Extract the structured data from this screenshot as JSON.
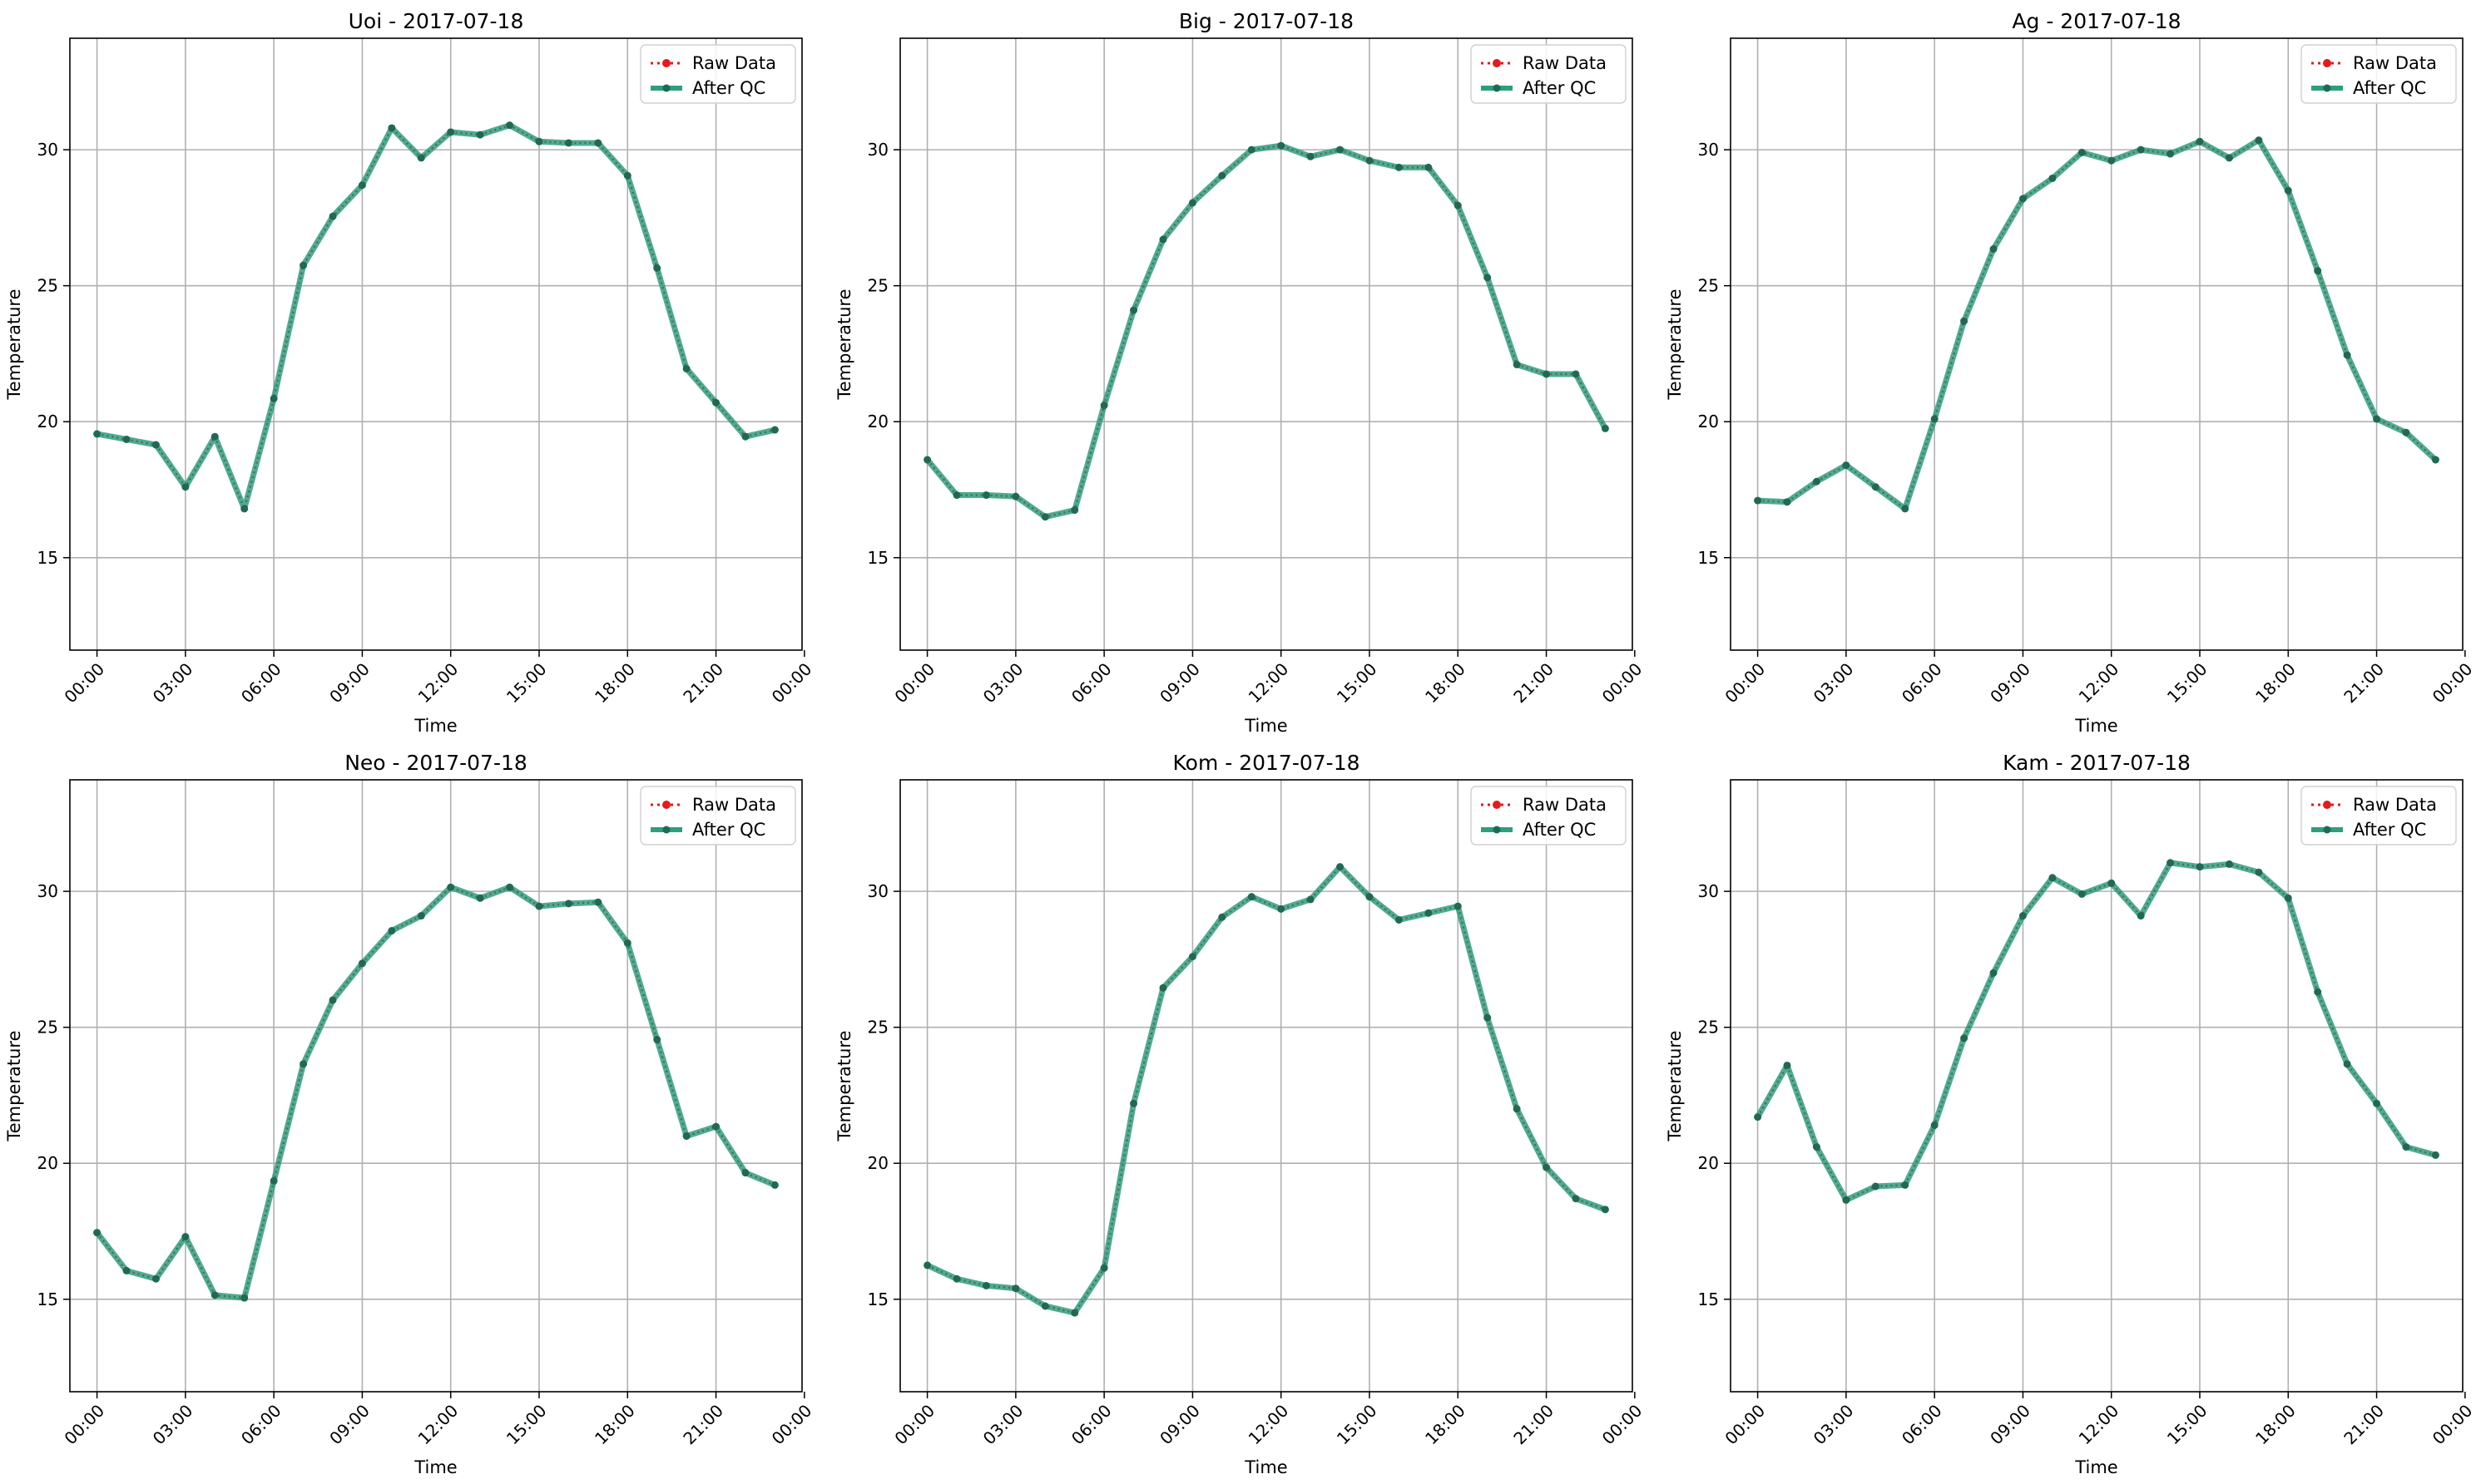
{
  "chart_data": [
    {
      "type": "line",
      "title": "Uoi - 2017-07-18",
      "xlabel": "Time",
      "ylabel": "Temperature",
      "ylim": [
        11.6,
        34.1
      ],
      "xlim": [
        -0.92,
        23.92
      ],
      "x": [
        0,
        1,
        2,
        3,
        4,
        5,
        6,
        7,
        8,
        9,
        10,
        11,
        12,
        13,
        14,
        15,
        16,
        17,
        18,
        19,
        20,
        21,
        22,
        23
      ],
      "xticks": [
        "00:00",
        "03:00",
        "06:00",
        "09:00",
        "12:00",
        "15:00",
        "18:00",
        "21:00",
        "00:00"
      ],
      "yticks": [
        15,
        20,
        25,
        30
      ],
      "grid": true,
      "legend": "top-right",
      "series": [
        {
          "name": "Raw Data",
          "values": [
            19.55,
            19.35,
            19.15,
            17.6,
            19.45,
            16.8,
            20.85,
            25.75,
            27.55,
            28.7,
            30.8,
            29.7,
            30.65,
            30.55,
            30.9,
            30.3,
            30.25,
            30.25,
            29.05,
            25.65,
            21.95,
            20.7,
            19.45,
            19.7
          ]
        },
        {
          "name": "After QC",
          "values": [
            19.55,
            19.35,
            19.15,
            17.6,
            19.45,
            16.8,
            20.85,
            25.75,
            27.55,
            28.7,
            30.8,
            29.7,
            30.65,
            30.55,
            30.9,
            30.3,
            30.25,
            30.25,
            29.05,
            25.65,
            21.95,
            20.7,
            19.45,
            19.7
          ]
        }
      ]
    },
    {
      "type": "line",
      "title": "Big - 2017-07-18",
      "xlabel": "Time",
      "ylabel": "Temperature",
      "ylim": [
        11.6,
        34.1
      ],
      "xlim": [
        -0.92,
        23.92
      ],
      "x": [
        0,
        1,
        2,
        3,
        4,
        5,
        6,
        7,
        8,
        9,
        10,
        11,
        12,
        13,
        14,
        15,
        16,
        17,
        18,
        19,
        20,
        21,
        22,
        23
      ],
      "xticks": [
        "00:00",
        "03:00",
        "06:00",
        "09:00",
        "12:00",
        "15:00",
        "18:00",
        "21:00",
        "00:00"
      ],
      "yticks": [
        15,
        20,
        25,
        30
      ],
      "grid": true,
      "legend": "top-right",
      "series": [
        {
          "name": "Raw Data",
          "values": [
            18.6,
            17.3,
            17.3,
            17.25,
            16.5,
            16.75,
            20.6,
            24.1,
            26.7,
            28.05,
            29.05,
            30.0,
            30.15,
            29.75,
            30.0,
            29.6,
            29.35,
            29.35,
            27.95,
            25.3,
            22.1,
            21.75,
            21.75,
            19.75
          ]
        },
        {
          "name": "After QC",
          "values": [
            18.6,
            17.3,
            17.3,
            17.25,
            16.5,
            16.75,
            20.6,
            24.1,
            26.7,
            28.05,
            29.05,
            30.0,
            30.15,
            29.75,
            30.0,
            29.6,
            29.35,
            29.35,
            27.95,
            25.3,
            22.1,
            21.75,
            21.75,
            19.75
          ]
        }
      ]
    },
    {
      "type": "line",
      "title": "Ag - 2017-07-18",
      "xlabel": "Time",
      "ylabel": "Temperature",
      "ylim": [
        11.6,
        34.1
      ],
      "xlim": [
        -0.92,
        23.92
      ],
      "x": [
        0,
        1,
        2,
        3,
        4,
        5,
        6,
        7,
        8,
        9,
        10,
        11,
        12,
        13,
        14,
        15,
        16,
        17,
        18,
        19,
        20,
        21,
        22,
        23
      ],
      "xticks": [
        "00:00",
        "03:00",
        "06:00",
        "09:00",
        "12:00",
        "15:00",
        "18:00",
        "21:00",
        "00:00"
      ],
      "yticks": [
        15,
        20,
        25,
        30
      ],
      "grid": true,
      "legend": "top-right",
      "series": [
        {
          "name": "Raw Data",
          "values": [
            17.1,
            17.05,
            17.8,
            18.4,
            17.6,
            16.8,
            20.1,
            23.7,
            26.35,
            28.2,
            28.95,
            29.9,
            29.6,
            30.0,
            29.85,
            30.3,
            29.7,
            30.35,
            28.5,
            25.55,
            22.45,
            20.1,
            19.6,
            18.6
          ]
        },
        {
          "name": "After QC",
          "values": [
            17.1,
            17.05,
            17.8,
            18.4,
            17.6,
            16.8,
            20.1,
            23.7,
            26.35,
            28.2,
            28.95,
            29.9,
            29.6,
            30.0,
            29.85,
            30.3,
            29.7,
            30.35,
            28.5,
            25.55,
            22.45,
            20.1,
            19.6,
            18.6
          ]
        }
      ]
    },
    {
      "type": "line",
      "title": "Neo - 2017-07-18",
      "xlabel": "Time",
      "ylabel": "Temperature",
      "ylim": [
        11.6,
        34.1
      ],
      "xlim": [
        -0.92,
        23.92
      ],
      "x": [
        0,
        1,
        2,
        3,
        4,
        5,
        6,
        7,
        8,
        9,
        10,
        11,
        12,
        13,
        14,
        15,
        16,
        17,
        18,
        19,
        20,
        21,
        22,
        23
      ],
      "xticks": [
        "00:00",
        "03:00",
        "06:00",
        "09:00",
        "12:00",
        "15:00",
        "18:00",
        "21:00",
        "00:00"
      ],
      "yticks": [
        15,
        20,
        25,
        30
      ],
      "grid": true,
      "legend": "top-right",
      "series": [
        {
          "name": "Raw Data",
          "values": [
            17.45,
            16.05,
            15.75,
            17.3,
            15.15,
            15.05,
            19.35,
            23.65,
            26.0,
            27.35,
            28.55,
            29.1,
            30.15,
            29.75,
            30.15,
            29.45,
            29.55,
            29.6,
            28.1,
            24.55,
            21.0,
            21.35,
            19.65,
            19.2
          ]
        },
        {
          "name": "After QC",
          "values": [
            17.45,
            16.05,
            15.75,
            17.3,
            15.15,
            15.05,
            19.35,
            23.65,
            26.0,
            27.35,
            28.55,
            29.1,
            30.15,
            29.75,
            30.15,
            29.45,
            29.55,
            29.6,
            28.1,
            24.55,
            21.0,
            21.35,
            19.65,
            19.2
          ]
        }
      ]
    },
    {
      "type": "line",
      "title": "Kom - 2017-07-18",
      "xlabel": "Time",
      "ylabel": "Temperature",
      "ylim": [
        11.6,
        34.1
      ],
      "xlim": [
        -0.92,
        23.92
      ],
      "x": [
        0,
        1,
        2,
        3,
        4,
        5,
        6,
        7,
        8,
        9,
        10,
        11,
        12,
        13,
        14,
        15,
        16,
        17,
        18,
        19,
        20,
        21,
        22,
        23
      ],
      "xticks": [
        "00:00",
        "03:00",
        "06:00",
        "09:00",
        "12:00",
        "15:00",
        "18:00",
        "21:00",
        "00:00"
      ],
      "yticks": [
        15,
        20,
        25,
        30
      ],
      "grid": true,
      "legend": "top-right",
      "series": [
        {
          "name": "Raw Data",
          "values": [
            16.25,
            15.75,
            15.5,
            15.4,
            14.75,
            14.5,
            16.15,
            22.2,
            26.45,
            27.6,
            29.05,
            29.8,
            29.35,
            29.7,
            30.9,
            29.8,
            28.95,
            29.2,
            29.45,
            25.35,
            22.0,
            19.85,
            18.7,
            18.3
          ]
        },
        {
          "name": "After QC",
          "values": [
            16.25,
            15.75,
            15.5,
            15.4,
            14.75,
            14.5,
            16.15,
            22.2,
            26.45,
            27.6,
            29.05,
            29.8,
            29.35,
            29.7,
            30.9,
            29.8,
            28.95,
            29.2,
            29.45,
            25.35,
            22.0,
            19.85,
            18.7,
            18.3
          ]
        }
      ]
    },
    {
      "type": "line",
      "title": "Kam - 2017-07-18",
      "xlabel": "Time",
      "ylabel": "Temperature",
      "ylim": [
        11.6,
        34.1
      ],
      "xlim": [
        -0.92,
        23.92
      ],
      "x": [
        0,
        1,
        2,
        3,
        4,
        5,
        6,
        7,
        8,
        9,
        10,
        11,
        12,
        13,
        14,
        15,
        16,
        17,
        18,
        19,
        20,
        21,
        22,
        23
      ],
      "xticks": [
        "00:00",
        "03:00",
        "06:00",
        "09:00",
        "12:00",
        "15:00",
        "18:00",
        "21:00",
        "00:00"
      ],
      "yticks": [
        15,
        20,
        25,
        30
      ],
      "grid": true,
      "legend": "top-right",
      "series": [
        {
          "name": "Raw Data",
          "values": [
            21.7,
            23.6,
            20.6,
            18.65,
            19.15,
            19.2,
            21.4,
            24.6,
            27.0,
            29.1,
            30.5,
            29.9,
            30.3,
            29.1,
            31.05,
            30.9,
            31.0,
            30.7,
            29.75,
            26.3,
            23.65,
            22.2,
            20.6,
            20.3
          ]
        },
        {
          "name": "After QC",
          "values": [
            21.7,
            23.6,
            20.6,
            18.65,
            19.15,
            19.2,
            21.4,
            24.6,
            27.0,
            29.1,
            30.5,
            29.9,
            30.3,
            29.1,
            31.05,
            30.9,
            31.0,
            30.7,
            29.75,
            26.3,
            23.65,
            22.2,
            20.6,
            20.3
          ]
        }
      ]
    }
  ],
  "colors": {
    "raw": "#e41a1c",
    "qc": "#2e9e7f",
    "qc_marker": "#1d6b56",
    "grid": "#b0b0b0",
    "axis": "#000000"
  }
}
